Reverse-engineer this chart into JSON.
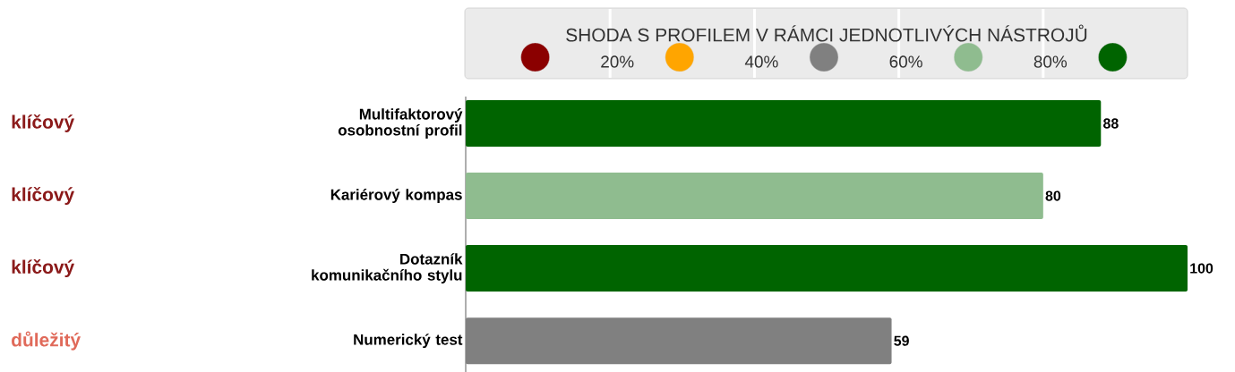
{
  "chart_data": {
    "type": "bar",
    "orientation": "horizontal",
    "clabel": "SHODA S PROFILEM V RÁMCI JEDNOTLIVÝCH NÁSTROJŮ",
    "categories": [
      "Multifaktorový osobnostní profil",
      "Kariérový kompas",
      "Dotazník komunikačního stylu",
      "Numerický test"
    ],
    "values": [
      88,
      80,
      100,
      59
    ],
    "colors": [
      "#006400",
      "#8fbc8f",
      "#006400",
      "#808080"
    ],
    "xlim": [
      0,
      100
    ],
    "tick_labels": "y",
    "data_labels": true,
    "clim": [
      0,
      100
    ],
    "cticks": [
      {
        "value": 20,
        "label": "20%"
      },
      {
        "value": 40,
        "label": "40%"
      },
      {
        "value": 60,
        "label": "60%"
      },
      {
        "value": 80,
        "label": "80%"
      }
    ],
    "annotations": [
      "klíčový",
      "klíčový",
      "klíčový",
      "důležitý"
    ]
  }
}
